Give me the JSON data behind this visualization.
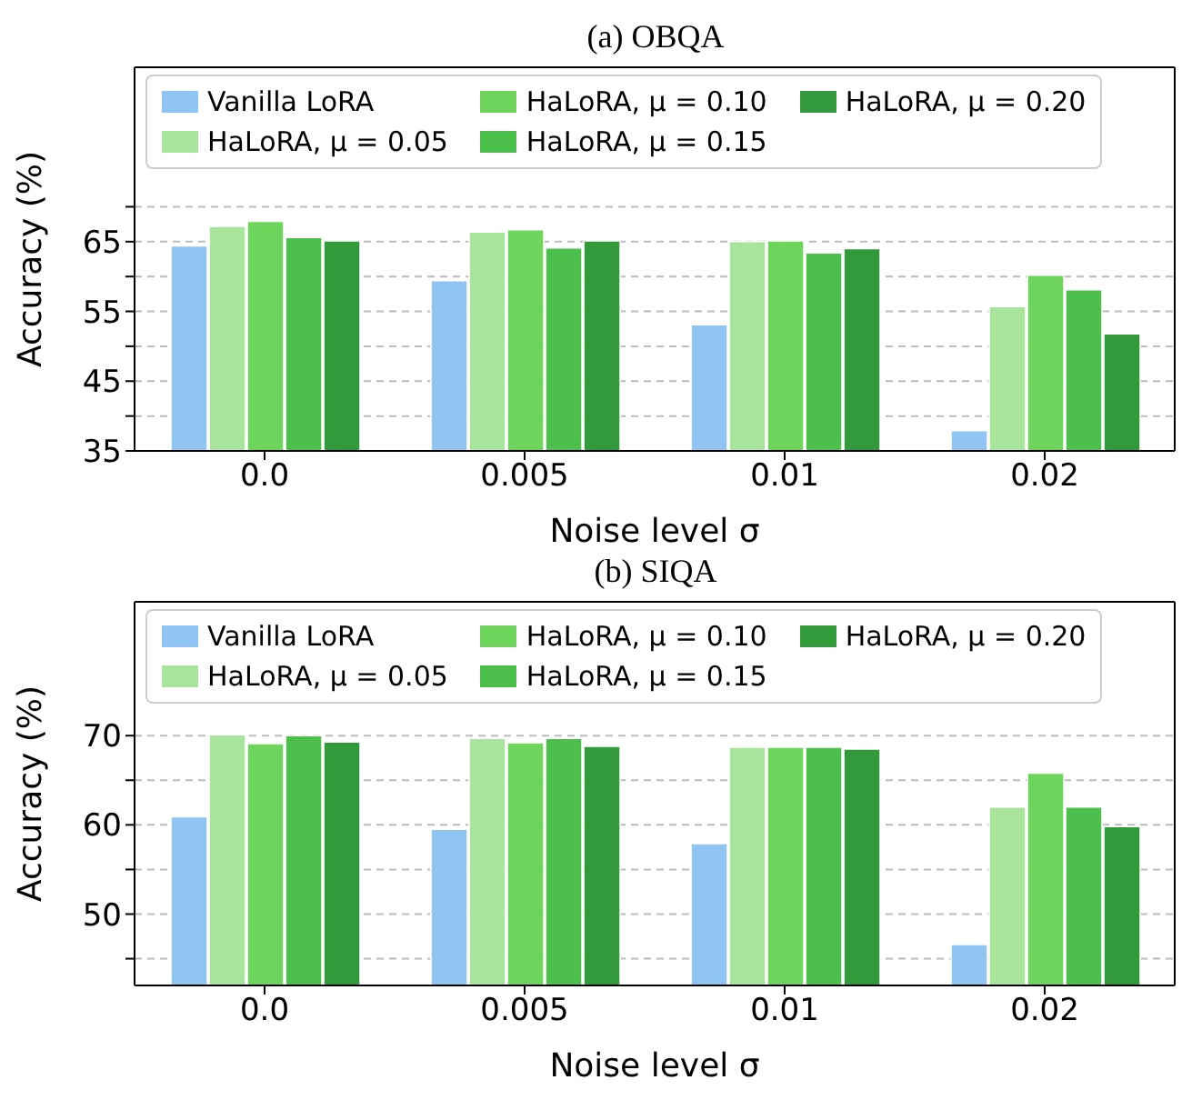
{
  "chart_data": [
    {
      "type": "bar",
      "title": "(a) OBQA",
      "xlabel": "Noise level σ",
      "ylabel": "Accuracy (%)",
      "categories": [
        "0.0",
        "0.005",
        "0.01",
        "0.02"
      ],
      "series": [
        {
          "name": "Vanilla LoRA",
          "color": "#90c4f2",
          "values": [
            64.4,
            59.4,
            53.1,
            37.9
          ]
        },
        {
          "name": "HaLoRA, μ = 0.05",
          "color": "#a8e49c",
          "values": [
            67.2,
            66.4,
            65.0,
            55.7
          ]
        },
        {
          "name": "HaLoRA, μ = 0.10",
          "color": "#6dd45c",
          "values": [
            67.9,
            66.7,
            65.1,
            60.2
          ]
        },
        {
          "name": "HaLoRA, μ = 0.15",
          "color": "#4dbf4d",
          "values": [
            65.6,
            64.1,
            63.4,
            58.1
          ]
        },
        {
          "name": "HaLoRA, μ = 0.20",
          "color": "#339a3c",
          "values": [
            65.1,
            65.1,
            64.0,
            51.8
          ]
        }
      ],
      "ylim": [
        35,
        90
      ],
      "yticks": [
        35,
        {
          "value": 40,
          "label": null
        },
        45,
        {
          "value": 50,
          "label": null
        },
        55,
        {
          "value": 60,
          "label": null
        },
        65,
        {
          "value": 70,
          "label": null
        }
      ],
      "grid": "y",
      "legend": "top"
    },
    {
      "type": "bar",
      "title": "(b) SIQA",
      "xlabel": "Noise level σ",
      "ylabel": "Accuracy (%)",
      "categories": [
        "0.0",
        "0.005",
        "0.01",
        "0.02"
      ],
      "series": [
        {
          "name": "Vanilla LoRA",
          "color": "#90c4f2",
          "values": [
            60.9,
            59.5,
            57.9,
            46.6
          ]
        },
        {
          "name": "HaLoRA, μ = 0.05",
          "color": "#a8e49c",
          "values": [
            70.1,
            69.7,
            68.7,
            62.0
          ]
        },
        {
          "name": "HaLoRA, μ = 0.10",
          "color": "#6dd45c",
          "values": [
            69.1,
            69.2,
            68.7,
            65.8
          ]
        },
        {
          "name": "HaLoRA, μ = 0.15",
          "color": "#4dbf4d",
          "values": [
            70.0,
            69.7,
            68.7,
            62.0
          ]
        },
        {
          "name": "HaLoRA, μ = 0.20",
          "color": "#339a3c",
          "values": [
            69.3,
            68.8,
            68.5,
            59.8
          ]
        }
      ],
      "ylim": [
        42,
        85
      ],
      "yticks": [
        {
          "value": 45,
          "label": null
        },
        50,
        {
          "value": 55,
          "label": null
        },
        60,
        {
          "value": 65,
          "label": null
        },
        70
      ],
      "grid": "y",
      "legend": "top"
    }
  ]
}
